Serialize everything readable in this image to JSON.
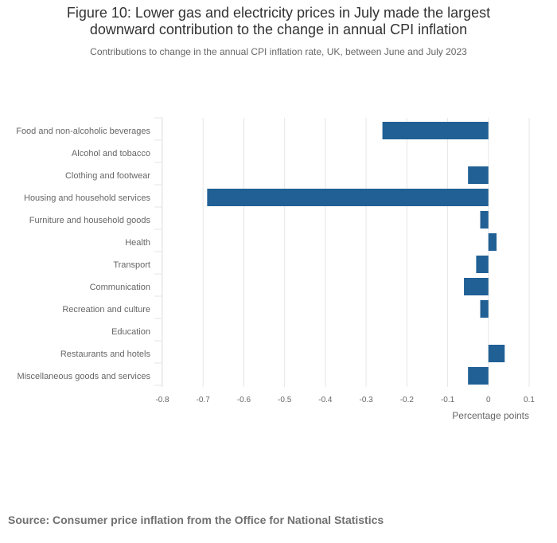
{
  "header": {
    "title_line1": "Figure 10: Lower gas and electricity prices in July made the largest",
    "title_line2": "downward contribution to the change in annual CPI inflation",
    "subtitle": "Contributions to change in the annual CPI inflation rate, UK, between June and July 2023"
  },
  "colors": {
    "bar": "#206095",
    "grid": "#e6e6e6",
    "axis_text": "#666666"
  },
  "chart_data": {
    "type": "bar",
    "orientation": "horizontal",
    "categories": [
      "Food and non-alcoholic beverages",
      "Alcohol and tobacco",
      "Clothing and footwear",
      "Housing and household services",
      "Furniture and household goods",
      "Health",
      "Transport",
      "Communication",
      "Recreation and culture",
      "Education",
      "Restaurants and hotels",
      "Miscellaneous goods and services"
    ],
    "values": [
      -0.26,
      0.0,
      -0.05,
      -0.69,
      -0.02,
      0.02,
      -0.03,
      -0.06,
      -0.02,
      0.0,
      0.04,
      -0.05
    ],
    "xlabel": "Percentage points",
    "ylabel": "",
    "xlim": [
      -0.8,
      0.1
    ],
    "xticks": [
      -0.8,
      -0.7,
      -0.6,
      -0.5,
      -0.4,
      -0.3,
      -0.2,
      -0.1,
      0,
      0.1
    ],
    "xtick_labels": [
      "-0.8",
      "-0.7",
      "-0.6",
      "-0.5",
      "-0.4",
      "-0.3",
      "-0.2",
      "-0.1",
      "0",
      "0.1"
    ],
    "grid": true,
    "legend": "none"
  },
  "footer": {
    "source": "Source: Consumer price inflation from the Office for National Statistics"
  }
}
